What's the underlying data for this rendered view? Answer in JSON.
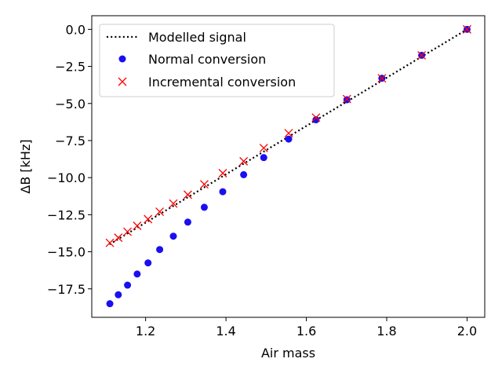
{
  "chart_data": {
    "type": "scatter",
    "title": "",
    "xlabel": "Air mass",
    "ylabel": "ΔB [kHz]",
    "xlim": [
      1.066,
      2.044
    ],
    "ylim": [
      -19.42,
      0.92
    ],
    "xticks": [
      1.2,
      1.4,
      1.6,
      1.8,
      2.0
    ],
    "xtick_labels": [
      "1.2",
      "1.4",
      "1.6",
      "1.8",
      "2.0"
    ],
    "yticks": [
      0.0,
      -2.5,
      -5.0,
      -7.5,
      -10.0,
      -12.5,
      -15.0,
      -17.5
    ],
    "ytick_labels": [
      "0.0",
      "−2.5",
      "−5.0",
      "−7.5",
      "−10.0",
      "−12.5",
      "−15.0",
      "−17.5"
    ],
    "legend_position": "upper-left",
    "series": [
      {
        "name": "Modelled signal",
        "kind": "line",
        "style": "dotted",
        "color": "#000000",
        "x": [
          1.11,
          2.0
        ],
        "y": [
          -14.5,
          0.0
        ]
      },
      {
        "name": "Normal conversion",
        "kind": "marker-circle",
        "color": "#1a0ff0",
        "x": [
          1.111,
          1.132,
          1.155,
          1.179,
          1.206,
          1.235,
          1.269,
          1.305,
          1.346,
          1.392,
          1.444,
          1.494,
          1.556,
          1.624,
          1.701,
          1.788,
          1.887,
          2.0
        ],
        "y": [
          -18.5,
          -17.9,
          -17.25,
          -16.5,
          -15.75,
          -14.85,
          -13.95,
          -13.0,
          -12.0,
          -10.95,
          -9.8,
          -8.65,
          -7.4,
          -6.1,
          -4.75,
          -3.3,
          -1.75,
          0.0
        ]
      },
      {
        "name": "Incremental conversion",
        "kind": "marker-x",
        "color": "#ff0000",
        "x": [
          1.111,
          1.132,
          1.155,
          1.179,
          1.206,
          1.235,
          1.269,
          1.305,
          1.346,
          1.392,
          1.444,
          1.494,
          1.556,
          1.624,
          1.701,
          1.788,
          1.887,
          2.0
        ],
        "y": [
          -14.4,
          -14.05,
          -13.65,
          -13.25,
          -12.8,
          -12.3,
          -11.75,
          -11.15,
          -10.45,
          -9.7,
          -8.9,
          -8.0,
          -7.0,
          -5.95,
          -4.7,
          -3.3,
          -1.75,
          0.0
        ]
      }
    ]
  }
}
